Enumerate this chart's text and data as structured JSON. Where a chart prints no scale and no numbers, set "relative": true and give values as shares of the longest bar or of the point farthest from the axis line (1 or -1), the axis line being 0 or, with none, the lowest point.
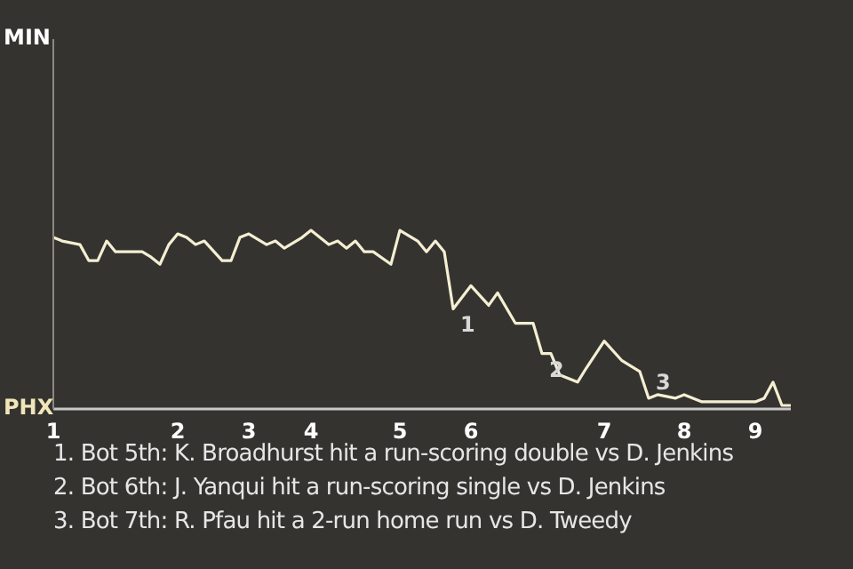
{
  "chart_data": {
    "type": "line",
    "relative": true,
    "categories": [
      "1",
      null,
      null,
      null,
      null,
      null,
      null,
      null,
      null,
      null,
      null,
      null,
      null,
      null,
      "2",
      null,
      null,
      null,
      null,
      null,
      null,
      null,
      "3",
      null,
      null,
      null,
      null,
      null,
      null,
      "4",
      null,
      null,
      null,
      null,
      null,
      null,
      null,
      null,
      null,
      "5",
      null,
      null,
      null,
      null,
      null,
      null,
      null,
      "6",
      null,
      null,
      null,
      null,
      null,
      null,
      null,
      null,
      null,
      null,
      null,
      null,
      null,
      null,
      "7",
      null,
      null,
      null,
      null,
      null,
      null,
      null,
      null,
      "8",
      null,
      null,
      null,
      null,
      null,
      null,
      null,
      "9",
      null,
      null,
      null,
      null
    ],
    "series": [
      {
        "color": "#f4efd2",
        "values": [
          0.96,
          0.94,
          null,
          0.92,
          0.83,
          0.83,
          0.94,
          0.88,
          null,
          null,
          0.88,
          0.85,
          0.81,
          0.92,
          0.98,
          0.96,
          0.92,
          0.94,
          null,
          0.83,
          0.83,
          0.96,
          0.98,
          null,
          0.92,
          0.94,
          0.9,
          null,
          0.96,
          1,
          null,
          0.92,
          0.94,
          0.9,
          0.94,
          0.88,
          0.88,
          null,
          0.81,
          1,
          null,
          0.94,
          0.88,
          0.94,
          0.88,
          0.56,
          null,
          0.69,
          null,
          0.58,
          0.65,
          null,
          0.48,
          null,
          0.48,
          0.31,
          0.31,
          0.19,
          null,
          0.15,
          0.23,
          null,
          0.38,
          null,
          0.27,
          null,
          0.21,
          0.06,
          0.08,
          null,
          0.06,
          0.08,
          null,
          0.04,
          0.04,
          null,
          null,
          null,
          null,
          0.04,
          0.06,
          0.15,
          0.02,
          0.02
        ]
      }
    ],
    "annotations": [
      "MIN",
      "PHX",
      "1",
      "2",
      "3",
      "1. Bot 5th: K. Broadhurst hit a run-scoring double vs D. Jenkins",
      "2. Bot 6th: J. Yanqui hit a run-scoring single vs D. Jenkins",
      "3. Bot 7th: R. Pfau hit a 2-run home run vs D. Tweedy"
    ]
  }
}
